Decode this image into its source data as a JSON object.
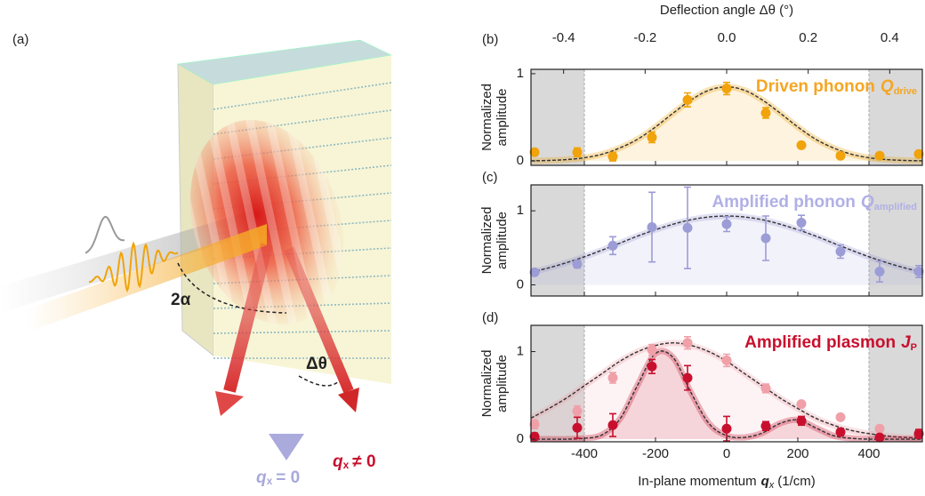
{
  "panel_labels": [
    "(a)",
    "(b)",
    "(c)",
    "(d)"
  ],
  "illustration": {
    "angle_label": "2α",
    "deflection_label": "Δθ",
    "beam_zero": {
      "symbol": "q",
      "subscript": "x",
      "relation": "= 0"
    },
    "beam_nonzero": {
      "symbol": "q",
      "subscript": "x",
      "relation": "≠ 0"
    }
  },
  "chart_data": [
    {
      "type": "scatter",
      "title": "Driven phonon",
      "title_symbol": "Q",
      "title_subscript": "drive",
      "title_color": "#f5a623",
      "y_label": [
        "Normalized",
        "amplitude"
      ],
      "x2_label": "Deflection angle Δθ (°)",
      "x2lim": [
        -0.48,
        0.48
      ],
      "x2ticks": [
        -0.4,
        -0.2,
        {
          "value": 0,
          "label": "0.0"
        },
        0.2,
        0.4
      ],
      "xlim": [
        -550,
        550
      ],
      "xticks": [
        -400,
        -200,
        0,
        200,
        400
      ],
      "ylim": [
        -0.05,
        1.05
      ],
      "yticks": [
        0,
        1
      ],
      "shaded_x_ranges": [
        [
          -550,
          -400
        ],
        [
          400,
          550
        ]
      ],
      "series": [
        {
          "color": "#f0a30a",
          "x": [
            -540,
            -420,
            -320,
            -210,
            -110,
            0,
            110,
            210,
            320,
            430,
            540
          ],
          "values": [
            0.1,
            0.1,
            0.05,
            0.27,
            0.7,
            0.83,
            0.55,
            0.18,
            0.06,
            0.06,
            0.08
          ],
          "errors": [
            0.04,
            0.05,
            0.05,
            0.06,
            0.08,
            0.07,
            0.06,
            0.03,
            0.02,
            0.02,
            0.02
          ],
          "fit_x": [
            -550,
            -500,
            -450,
            -400,
            -350,
            -300,
            -250,
            -200,
            -150,
            -100,
            -50,
            0,
            50,
            100,
            150,
            200,
            250,
            300,
            350,
            400,
            450,
            500,
            550
          ],
          "fit_values": [
            0.002,
            0.006,
            0.016,
            0.037,
            0.078,
            0.15,
            0.25,
            0.39,
            0.55,
            0.7,
            0.81,
            0.85,
            0.81,
            0.7,
            0.55,
            0.39,
            0.25,
            0.15,
            0.078,
            0.037,
            0.016,
            0.006,
            0.002
          ]
        }
      ]
    },
    {
      "type": "scatter",
      "title": "Amplified phonon",
      "title_symbol": "Q",
      "title_subscript": "amplified",
      "title_color": "#b0b0e6",
      "y_label": [
        "Normalized",
        "amplitude"
      ],
      "xlim": [
        -550,
        550
      ],
      "xticks": [
        -400,
        -200,
        0,
        200,
        400
      ],
      "ylim": [
        -0.15,
        1.35
      ],
      "yticks": [
        0,
        1
      ],
      "shaded_x_ranges": [
        [
          -550,
          -400
        ],
        [
          400,
          550
        ]
      ],
      "series": [
        {
          "color": "#9c9cd6",
          "x": [
            -540,
            -420,
            -320,
            -210,
            -110,
            0,
            110,
            210,
            320,
            430,
            540
          ],
          "values": [
            0.17,
            0.28,
            0.53,
            0.78,
            0.77,
            0.82,
            0.63,
            0.84,
            0.45,
            0.18,
            0.18
          ],
          "errors": [
            0.04,
            0.05,
            0.12,
            0.47,
            0.55,
            0.1,
            0.3,
            0.1,
            0.09,
            0.14,
            0.08
          ],
          "fit_x": [
            -550,
            -500,
            -450,
            -400,
            -350,
            -300,
            -250,
            -200,
            -150,
            -100,
            -50,
            0,
            50,
            100,
            150,
            200,
            250,
            300,
            350,
            400,
            450,
            500,
            550
          ],
          "fit_values": [
            0.17,
            0.23,
            0.3,
            0.38,
            0.47,
            0.564,
            0.66,
            0.745,
            0.82,
            0.88,
            0.917,
            0.93,
            0.917,
            0.88,
            0.82,
            0.745,
            0.66,
            0.564,
            0.47,
            0.38,
            0.3,
            0.23,
            0.17
          ]
        }
      ]
    },
    {
      "type": "scatter",
      "title": "Amplified plasmon",
      "title_symbol": "J",
      "title_subscript": "P",
      "title_color": "#c8102e",
      "y_label": [
        "Normalized",
        "amplitude"
      ],
      "x_label": "In-plane momentum",
      "x_label_symbol": "q",
      "x_label_subscript": "x",
      "x_label_unit": "(1/cm)",
      "xlim": [
        -550,
        550
      ],
      "xticks": [
        -400,
        -200,
        0,
        200,
        400
      ],
      "ylim": [
        -0.03,
        1.3
      ],
      "yticks": [
        0,
        1
      ],
      "shaded_x_ranges": [
        [
          -550,
          -400
        ],
        [
          400,
          550
        ]
      ],
      "series": [
        {
          "color": "#f0a0a8",
          "x": [
            -540,
            -420,
            -320,
            -210,
            -110,
            0,
            110,
            210,
            320,
            430,
            540
          ],
          "values": [
            0.17,
            0.32,
            0.7,
            1.02,
            1.1,
            0.9,
            0.58,
            0.4,
            0.25,
            0.12,
            0.07
          ],
          "errors": [
            0.05,
            0.06,
            0.06,
            0.06,
            0.07,
            0.07,
            0.05,
            0.03,
            0.03,
            0.03,
            0.03
          ],
          "fit_x": [
            -550,
            -500,
            -450,
            -400,
            -350,
            -300,
            -250,
            -200,
            -150,
            -100,
            -50,
            0,
            50,
            100,
            150,
            200,
            250,
            300,
            350,
            400,
            450,
            500,
            550
          ],
          "fit_values": [
            0.24,
            0.35,
            0.47,
            0.61,
            0.75,
            0.89,
            1.0,
            1.07,
            1.1,
            1.07,
            1.0,
            0.89,
            0.75,
            0.61,
            0.47,
            0.35,
            0.24,
            0.16,
            0.1,
            0.063,
            0.037,
            0.02,
            0.011
          ]
        },
        {
          "color": "#c8102e",
          "x": [
            -540,
            -420,
            -320,
            -210,
            -110,
            0,
            110,
            210,
            320,
            430,
            540
          ],
          "values": [
            0.03,
            0.13,
            0.16,
            0.83,
            0.7,
            0.12,
            0.15,
            0.21,
            0.08,
            0.02,
            0.06
          ],
          "errors": [
            0.04,
            0.12,
            0.13,
            0.08,
            0.14,
            0.14,
            0.05,
            0.05,
            0.04,
            0.03,
            0.05
          ],
          "fit_x": [
            -550,
            -500,
            -450,
            -400,
            -350,
            -300,
            -250,
            -200,
            -150,
            -100,
            -50,
            0,
            50,
            100,
            150,
            200,
            250,
            300,
            350,
            400,
            450,
            500,
            550
          ],
          "fit_values": [
            0,
            0,
            0,
            0.01,
            0.05,
            0.23,
            0.62,
            0.98,
            0.93,
            0.53,
            0.18,
            0.04,
            0.02,
            0.07,
            0.18,
            0.22,
            0.13,
            0.04,
            0.01,
            0,
            0,
            0,
            0
          ]
        }
      ]
    }
  ]
}
